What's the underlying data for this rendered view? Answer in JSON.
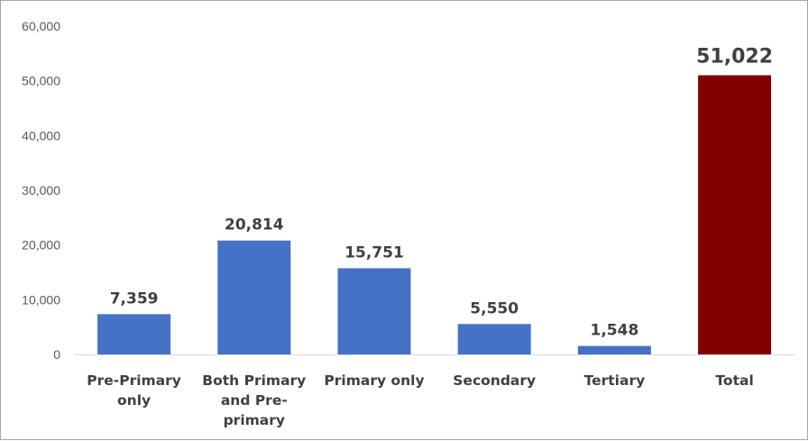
{
  "chart_data": {
    "type": "bar",
    "title": "",
    "xlabel": "",
    "ylabel": "",
    "ylim": [
      0,
      60000
    ],
    "y_ticks": [
      "0",
      "10,000",
      "20,000",
      "30,000",
      "40,000",
      "50,000",
      "60,000"
    ],
    "grid": false,
    "legend": "none",
    "categories": [
      [
        "Pre-Primary",
        "only"
      ],
      [
        "Both Primary",
        "and Pre-",
        "primary"
      ],
      [
        "Primary only"
      ],
      [
        "Secondary"
      ],
      [
        "Tertiary"
      ],
      [
        "Total"
      ]
    ],
    "values": [
      7359,
      20814,
      15751,
      5550,
      1548,
      51022
    ],
    "data_labels": [
      "7,359",
      "20,814",
      "15,751",
      "5,550",
      "1,548",
      "51,022"
    ],
    "colors": [
      "#4472c4",
      "#4472c4",
      "#4472c4",
      "#4472c4",
      "#4472c4",
      "#800000"
    ]
  }
}
